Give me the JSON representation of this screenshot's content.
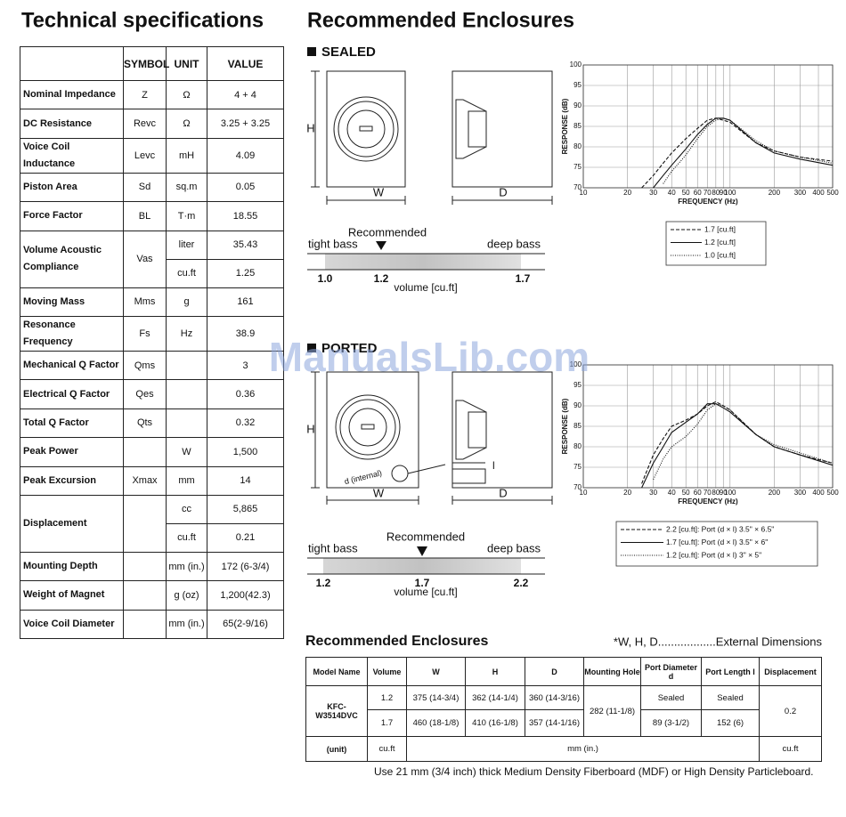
{
  "specs": {
    "title": "Technical specifications",
    "header": [
      "SYMBOL",
      "UNIT",
      "VALUE"
    ],
    "rows": [
      {
        "name": "Nominal Impedance",
        "symbol": "Z",
        "unit": "Ω",
        "value": "4 + 4"
      },
      {
        "name": "DC Resistance",
        "symbol": "Revc",
        "unit": "Ω",
        "value": "3.25 + 3.25"
      },
      {
        "name": "Voice Coil Inductance",
        "symbol": "Levc",
        "unit": "mH",
        "value": "4.09"
      },
      {
        "name": "Piston Area",
        "symbol": "Sd",
        "unit": "sq.m",
        "value": "0.05"
      },
      {
        "name": "Force Factor",
        "symbol": "BL",
        "unit": "T·m",
        "value": "18.55"
      },
      {
        "name": "Volume Acoustic Compliance",
        "symbol": "Vas",
        "sub": [
          {
            "unit": "liter",
            "value": "35.43"
          },
          {
            "unit": "cu.ft",
            "value": "1.25"
          }
        ]
      },
      {
        "name": "Moving Mass",
        "symbol": "Mms",
        "unit": "g",
        "value": "161"
      },
      {
        "name": "Resonance Frequency",
        "symbol": "Fs",
        "unit": "Hz",
        "value": "38.9"
      },
      {
        "name": "Mechanical Q Factor",
        "symbol": "Qms",
        "value": "3"
      },
      {
        "name": "Electrical Q Factor",
        "symbol": "Qes",
        "value": "0.36"
      },
      {
        "name": "Total Q Factor",
        "symbol": "Qts",
        "value": "0.32"
      },
      {
        "name": "Peak Power",
        "unit": "W",
        "value": "1,500"
      },
      {
        "name": "Peak Excursion",
        "symbol": "Xmax",
        "unit": "mm",
        "value": "14"
      },
      {
        "name": "Displacement",
        "sub": [
          {
            "unit": "cc",
            "value": "5,865"
          },
          {
            "unit": "cu.ft",
            "value": "0.21"
          }
        ]
      },
      {
        "name": "Mounting Depth",
        "unit": "mm (in.)",
        "value": "172 (6-3/4)"
      },
      {
        "name": "Weight of Magnet",
        "unit": "g (oz)",
        "value": "1,200(42.3)"
      },
      {
        "name": "Voice Coil Diameter",
        "unit": "mm (in.)",
        "value": "65(2-9/16)"
      }
    ]
  },
  "enclosures": {
    "title": "Recommended Enclosures",
    "sealed": {
      "label": "SEALED",
      "dims": {
        "h": "H",
        "w": "W",
        "d": "D"
      },
      "scale": {
        "left": "tight bass",
        "right": "deep bass",
        "recommended": "Recommended",
        "ticks": [
          "1.0",
          "1.2",
          "1.7"
        ],
        "axis": "volume [cu.ft]"
      },
      "chart": {
        "type": "line",
        "ylabel": "RESPONSE (dB)",
        "xlabel": "FREQUENCY (Hz)",
        "log_x": true,
        "grid": true,
        "xlim": [
          10,
          500
        ],
        "ylim": [
          70,
          100
        ],
        "xticks": [
          10,
          20,
          30,
          40,
          50,
          60,
          70,
          80,
          90,
          100,
          200,
          300,
          400,
          500
        ],
        "yticks": [
          70,
          75,
          80,
          85,
          90,
          95,
          100
        ],
        "x": [
          25,
          30,
          35,
          40,
          50,
          60,
          70,
          80,
          90,
          100,
          150,
          200,
          300,
          500
        ],
        "series": [
          {
            "name": "1.7 [cu.ft]",
            "color": "#111111",
            "dash": "dashed",
            "values": [
              70,
              73,
              76,
              78.5,
              82,
              84.5,
              86.5,
              87,
              86.5,
              86,
              81,
              79,
              77.5,
              76.5
            ]
          },
          {
            "name": "1.2 [cu.ft]",
            "color": "#111111",
            "dash": "solid",
            "values": [
              null,
              70,
              73,
              75.5,
              79.5,
              83,
              85.5,
              87,
              87,
              86.5,
              81,
              78.5,
              77,
              75.5
            ]
          },
          {
            "name": "1.0 [cu.ft]",
            "color": "#111111",
            "dash": "dotted",
            "values": [
              null,
              null,
              71,
              74,
              78,
              82,
              85,
              86.5,
              87,
              86.5,
              81.5,
              79,
              77.5,
              76
            ]
          }
        ]
      }
    },
    "ported": {
      "label": "PORTED",
      "dims": {
        "h": "H",
        "w": "W",
        "d": "D",
        "port_d": "d (internal)",
        "port_l": "l"
      },
      "scale": {
        "left": "tight bass",
        "right": "deep bass",
        "recommended": "Recommended",
        "ticks": [
          "1.2",
          "1.7",
          "2.2"
        ],
        "axis": "volume [cu.ft]"
      },
      "chart": {
        "type": "line",
        "ylabel": "RESPONSE (dB)",
        "xlabel": "FREQUENCY (Hz)",
        "log_x": true,
        "grid": true,
        "xlim": [
          10,
          500
        ],
        "ylim": [
          70,
          100
        ],
        "xticks": [
          10,
          20,
          30,
          40,
          50,
          60,
          70,
          80,
          90,
          100,
          200,
          300,
          400,
          500
        ],
        "yticks": [
          70,
          75,
          80,
          85,
          90,
          95,
          100
        ],
        "x": [
          25,
          30,
          35,
          40,
          50,
          60,
          70,
          80,
          90,
          100,
          150,
          200,
          300,
          500
        ],
        "series": [
          {
            "name": "2.2 [cu.ft]: Port (d × l) 3.5\" × 6.5\"",
            "color": "#111111",
            "dash": "dashed",
            "values": [
              71,
              78,
              82,
              85,
              86.5,
              88,
              90,
              91,
              90,
              89,
              83,
              80,
              78,
              76
            ]
          },
          {
            "name": "1.7 [cu.ft]: Port (d × l) 3.5\" × 6\"",
            "color": "#111111",
            "dash": "solid",
            "values": [
              70,
              76,
              80,
              83.5,
              86,
              88,
              90.5,
              90.5,
              89.5,
              88.5,
              83,
              80,
              78,
              75.5
            ]
          },
          {
            "name": "1.2 [cu.ft]: Port (d × l) 3\" × 5\"",
            "color": "#111111",
            "dash": "dotted",
            "values": [
              null,
              72,
              77,
              80,
              82.5,
              85.5,
              89,
              90.5,
              90,
              89,
              83,
              80.5,
              78.5,
              76
            ]
          }
        ]
      }
    }
  },
  "table": {
    "title": "Recommended Enclosures",
    "note": "*W, H, D..................External Dimensions",
    "header": [
      "Model Name",
      "Volume",
      "W",
      "H",
      "D",
      "Mounting Hole",
      "Port Diameter d",
      "Port Length l",
      "Displacement"
    ],
    "model": "KFC-W3514DVC",
    "rows": [
      [
        "1.2",
        "375 (14-3/4)",
        "362 (14-1/4)",
        "360 (14-3/16)",
        "Sealed",
        "Sealed"
      ],
      [
        "1.7",
        "460 (18-1/8)",
        "410 (16-1/8)",
        "357 (14-1/16)",
        "89 (3-1/2)",
        "152 (6)"
      ]
    ],
    "mounting_hole": "282 (11-1/8)",
    "displacement": "0.2",
    "units": {
      "label": "(unit)",
      "volume": "cu.ft",
      "dims": "mm (in.)",
      "displacement": "cu.ft"
    }
  },
  "footnote": "Use 21 mm (3/4 inch) thick Medium Density Fiberboard (MDF) or High Density Particleboard.",
  "watermark": "ManualsLib.com"
}
